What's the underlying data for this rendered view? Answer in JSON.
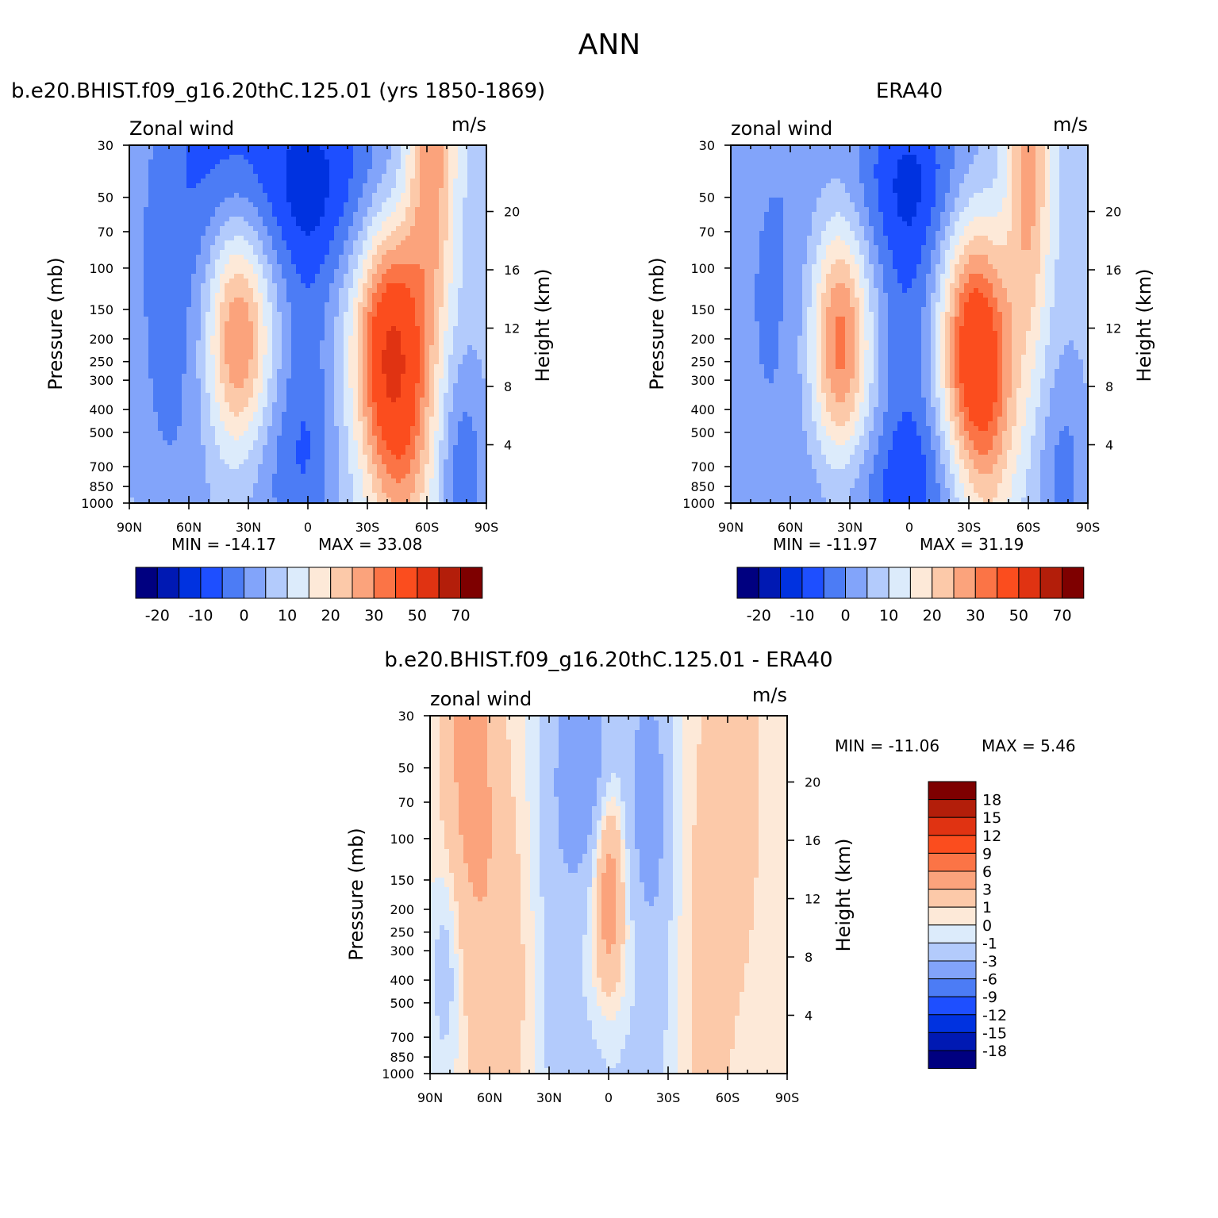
{
  "figure": {
    "title": "ANN"
  },
  "colors": {
    "model_levels": [
      "#000080",
      "#0019b3",
      "#0032e0",
      "#1e4fff",
      "#4c7cf5",
      "#82a4fa",
      "#b3cbfc",
      "#dcebfb",
      "#fde9d8",
      "#fcc9a9",
      "#fba37c",
      "#fb7446",
      "#fb4d1e",
      "#e03312",
      "#b31e0a",
      "#7e0000"
    ],
    "diff_levels": [
      "#000080",
      "#0019b3",
      "#0032e0",
      "#1e4fff",
      "#4c7cf5",
      "#82a4fa",
      "#b3cbfc",
      "#dcebfb",
      "#fde9d8",
      "#fcc9a9",
      "#fba37c",
      "#fb7446",
      "#fb4d1e",
      "#e03312",
      "#b31e0a",
      "#7e0000"
    ]
  },
  "chart_data": [
    {
      "type": "heatmap",
      "title": "b.e20.BHIST.f09_g16.20thC.125.01 (yrs 1850-1869)",
      "left_label": "Zonal wind",
      "units": "m/s",
      "xlabel": "",
      "ylabel": "Pressure (mb)",
      "y2label": "Height (km)",
      "x_ticks": [
        "90N",
        "60N",
        "30N",
        "0",
        "30S",
        "60S",
        "90S"
      ],
      "y_ticks": [
        "30",
        "50",
        "70",
        "100",
        "150",
        "200",
        "250",
        "300",
        "400",
        "500",
        "700",
        "850",
        "1000"
      ],
      "y2_ticks": [
        "20",
        "16",
        "12",
        "8",
        "4"
      ],
      "xlim": [
        90,
        -90
      ],
      "ylim": [
        1000,
        30
      ],
      "scale": "log-pressure",
      "min_label": "MIN = -14.17",
      "max_label": "MAX = 33.08",
      "colorbar": {
        "orientation": "horizontal",
        "labels": [
          "-20",
          "-10",
          "0",
          "10",
          "20",
          "30",
          "50",
          "70"
        ]
      },
      "features": [
        {
          "name": "north-subtropical-jet",
          "lat": 35,
          "p": 200,
          "value": 27
        },
        {
          "name": "south-subtropical-jet",
          "lat": -40,
          "p": 200,
          "value": 33.08
        },
        {
          "name": "south-polar-night-jet",
          "lat": -62,
          "p": 30,
          "value": 32
        },
        {
          "name": "tropical-easterlies",
          "lat": -2,
          "p": 30,
          "value": -14.17
        }
      ]
    },
    {
      "type": "heatmap",
      "title": "ERA40",
      "left_label": "zonal wind",
      "units": "m/s",
      "xlabel": "",
      "ylabel": "Pressure (mb)",
      "y2label": "Height (km)",
      "x_ticks": [
        "90N",
        "60N",
        "30N",
        "0",
        "30S",
        "60S",
        "90S"
      ],
      "y_ticks": [
        "30",
        "50",
        "70",
        "100",
        "150",
        "200",
        "250",
        "300",
        "400",
        "500",
        "700",
        "850",
        "1000"
      ],
      "y2_ticks": [
        "20",
        "16",
        "12",
        "8",
        "4"
      ],
      "xlim": [
        90,
        -90
      ],
      "ylim": [
        1000,
        30
      ],
      "scale": "log-pressure",
      "min_label": "MIN = -11.97",
      "max_label": "MAX = 31.19",
      "colorbar": {
        "orientation": "horizontal",
        "labels": [
          "-20",
          "-10",
          "0",
          "10",
          "20",
          "30",
          "50",
          "70"
        ]
      },
      "features": [
        {
          "name": "north-subtropical-jet",
          "lat": 35,
          "p": 200,
          "value": 27
        },
        {
          "name": "south-subtropical-jet",
          "lat": -32,
          "p": 200,
          "value": 31.19
        },
        {
          "name": "south-polar-night-jet",
          "lat": -60,
          "p": 30,
          "value": 28
        },
        {
          "name": "tropical-easterlies",
          "lat": 0,
          "p": 30,
          "value": -11.97
        }
      ]
    },
    {
      "type": "heatmap",
      "title": "b.e20.BHIST.f09_g16.20thC.125.01 - ERA40",
      "left_label": "zonal wind",
      "units": "m/s",
      "xlabel": "",
      "ylabel": "Pressure (mb)",
      "y2label": "Height (km)",
      "x_ticks": [
        "90N",
        "60N",
        "30N",
        "0",
        "30S",
        "60S",
        "90S"
      ],
      "y_ticks": [
        "30",
        "50",
        "70",
        "100",
        "150",
        "200",
        "250",
        "300",
        "400",
        "500",
        "700",
        "850",
        "1000"
      ],
      "y2_ticks": [
        "20",
        "16",
        "12",
        "8",
        "4"
      ],
      "xlim": [
        90,
        -90
      ],
      "ylim": [
        1000,
        30
      ],
      "scale": "log-pressure",
      "min_label": "MIN = -11.06",
      "max_label": "MAX = 5.46",
      "colorbar": {
        "orientation": "vertical",
        "labels": [
          "18",
          "15",
          "12",
          "9",
          "6",
          "3",
          "1",
          "0",
          "-1",
          "-3",
          "-6",
          "-9",
          "-12",
          "-15",
          "-18"
        ]
      },
      "features": [
        {
          "name": "equatorial-positive",
          "lat": 0,
          "p": 150,
          "value": 5.46
        },
        {
          "name": "north-positive-band",
          "lat": 70,
          "p": 50,
          "value": 4
        },
        {
          "name": "south-positive-band",
          "lat": -62,
          "p": 70,
          "value": 3
        },
        {
          "name": "tropical-negative",
          "lat": 10,
          "p": 50,
          "value": -5
        }
      ]
    }
  ]
}
